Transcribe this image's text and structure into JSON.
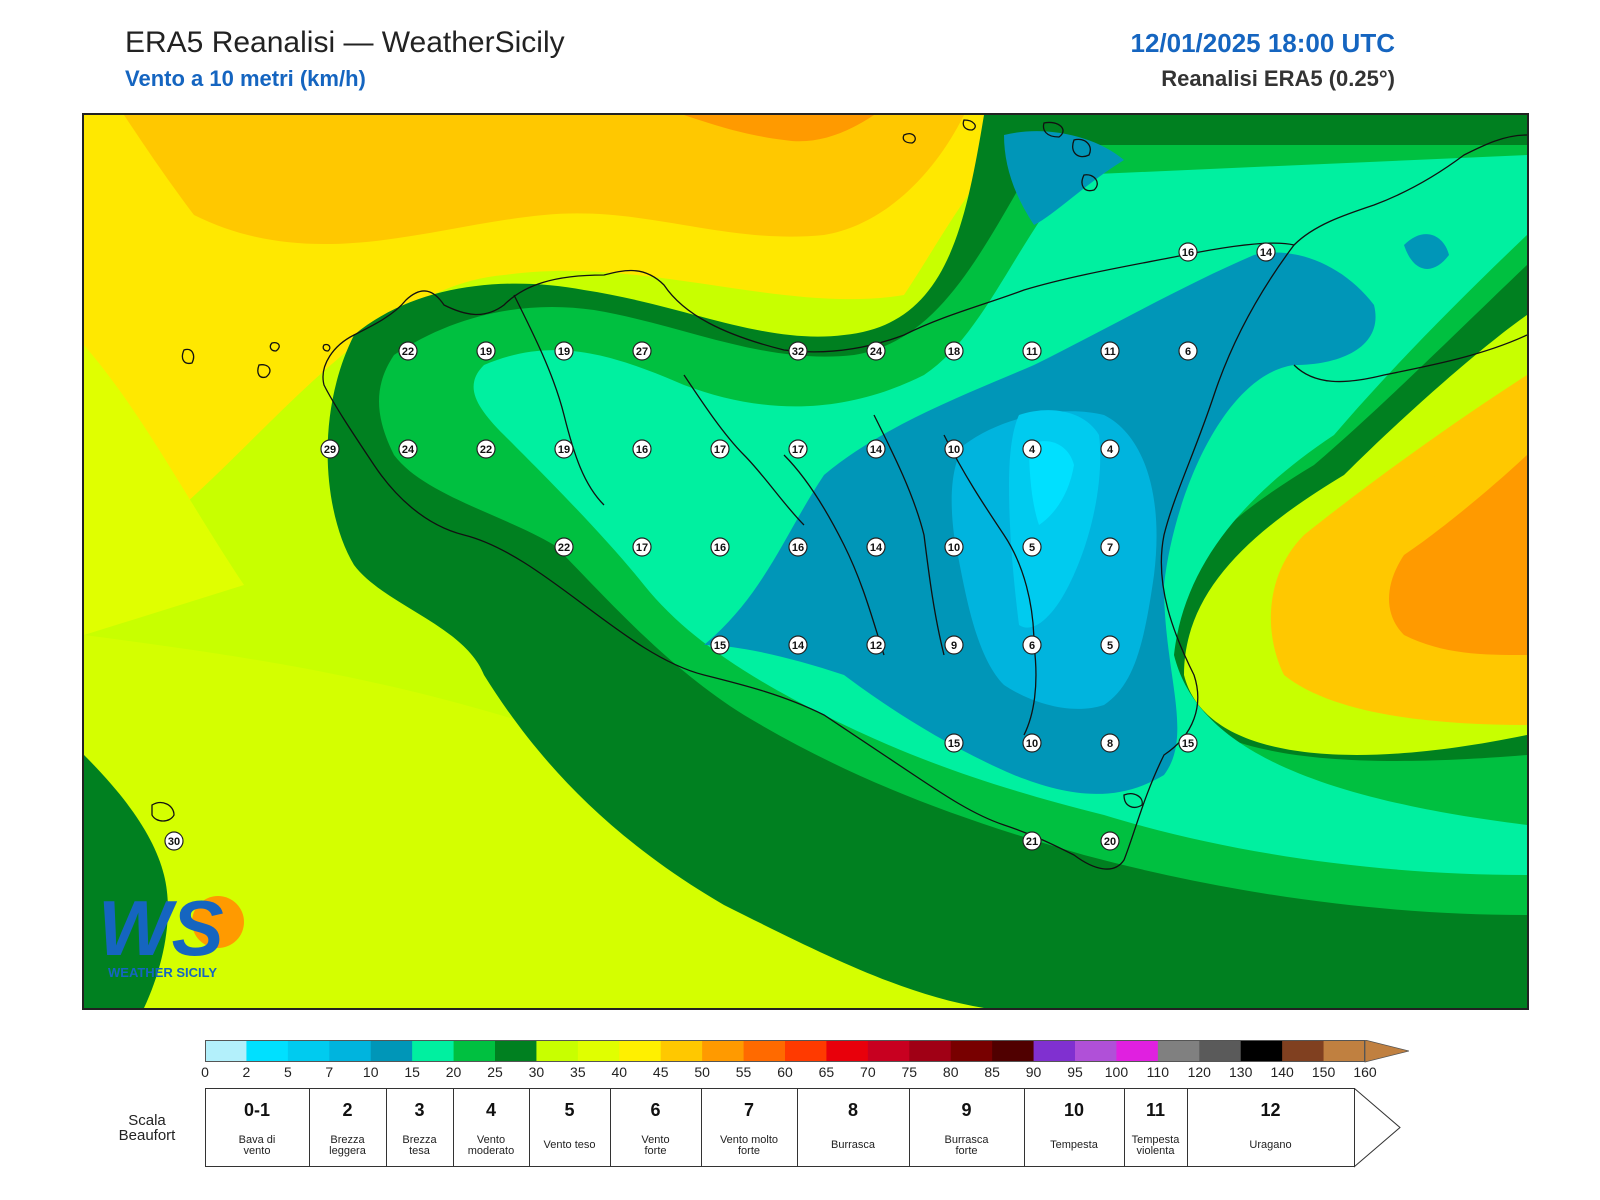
{
  "header": {
    "title": "ERA5 Reanalisi — WeatherSicily",
    "subtitle": "Vento a 10 metri (km/h)",
    "datetime": "12/01/2025 18:00 UTC",
    "source": "Reanalisi ERA5 (0.25°)"
  },
  "logo": {
    "text": "WEATHER SICILY",
    "letters": "WS"
  },
  "colors": {
    "cyan_light": "#b3f0fb",
    "blue": "#0096b8",
    "teal": "#00f0a0",
    "green": "#00c040",
    "dark_green": "#008020",
    "yellow_green": "#c8ff00",
    "yellow": "#ffe800",
    "orange": "#ff9a00",
    "coast": "#111111"
  },
  "stations": [
    {
      "value": "22"
    },
    {
      "value": "19"
    },
    {
      "value": "19"
    },
    {
      "value": "27"
    },
    {
      "value": "32"
    },
    {
      "value": "24"
    },
    {
      "value": "18"
    },
    {
      "value": "11"
    },
    {
      "value": "11"
    },
    {
      "value": "6"
    },
    {
      "value": "16"
    },
    {
      "value": "14"
    },
    {
      "value": "29"
    },
    {
      "value": "24"
    },
    {
      "value": "22"
    },
    {
      "value": "19"
    },
    {
      "value": "16"
    },
    {
      "value": "17"
    },
    {
      "value": "17"
    },
    {
      "value": "14"
    },
    {
      "value": "10"
    },
    {
      "value": "4"
    },
    {
      "value": "4"
    },
    {
      "value": "22"
    },
    {
      "value": "17"
    },
    {
      "value": "16"
    },
    {
      "value": "16"
    },
    {
      "value": "14"
    },
    {
      "value": "10"
    },
    {
      "value": "5"
    },
    {
      "value": "7"
    },
    {
      "value": "15"
    },
    {
      "value": "14"
    },
    {
      "value": "12"
    },
    {
      "value": "9"
    },
    {
      "value": "6"
    },
    {
      "value": "5"
    },
    {
      "value": "15"
    },
    {
      "value": "10"
    },
    {
      "value": "8"
    },
    {
      "value": "15"
    },
    {
      "value": "30"
    },
    {
      "value": "21"
    },
    {
      "value": "20"
    }
  ],
  "legend": {
    "ticks": [
      "0",
      "2",
      "5",
      "7",
      "10",
      "15",
      "20",
      "25",
      "30",
      "35",
      "40",
      "45",
      "50",
      "55",
      "60",
      "65",
      "70",
      "75",
      "80",
      "85",
      "90",
      "95",
      "100",
      "110",
      "120",
      "130",
      "140",
      "150",
      "160"
    ],
    "colors": [
      "#b3f0fb",
      "#00e0ff",
      "#00cbef",
      "#00b4de",
      "#0096b8",
      "#00f0a0",
      "#00c040",
      "#008020",
      "#c8ff00",
      "#e0ff00",
      "#fff000",
      "#ffc800",
      "#ff9a00",
      "#ff6a00",
      "#ff3a00",
      "#e8000b",
      "#c80020",
      "#a00015",
      "#780000",
      "#500000",
      "#8030d0",
      "#b050d8",
      "#e020e0",
      "#808080",
      "#5a5a5a",
      "#000000",
      "#804020",
      "#c08040"
    ],
    "beaufort_title": "Scala Beaufort",
    "beaufort": [
      {
        "num": "0-1",
        "desc": [
          "Bava di",
          "vento"
        ]
      },
      {
        "num": "2",
        "desc": [
          "Brezza",
          "leggera"
        ]
      },
      {
        "num": "3",
        "desc": [
          "Brezza",
          "tesa"
        ]
      },
      {
        "num": "4",
        "desc": [
          "Vento",
          "moderato"
        ]
      },
      {
        "num": "5",
        "desc": [
          "Vento teso"
        ]
      },
      {
        "num": "6",
        "desc": [
          "Vento",
          "forte"
        ]
      },
      {
        "num": "7",
        "desc": [
          "Vento molto",
          "forte"
        ]
      },
      {
        "num": "8",
        "desc": [
          "Burrasca"
        ]
      },
      {
        "num": "9",
        "desc": [
          "Burrasca",
          "forte"
        ]
      },
      {
        "num": "10",
        "desc": [
          "Tempesta"
        ]
      },
      {
        "num": "11",
        "desc": [
          "Tempesta",
          "violenta"
        ]
      },
      {
        "num": "12",
        "desc": [
          "Uragano"
        ]
      }
    ]
  }
}
